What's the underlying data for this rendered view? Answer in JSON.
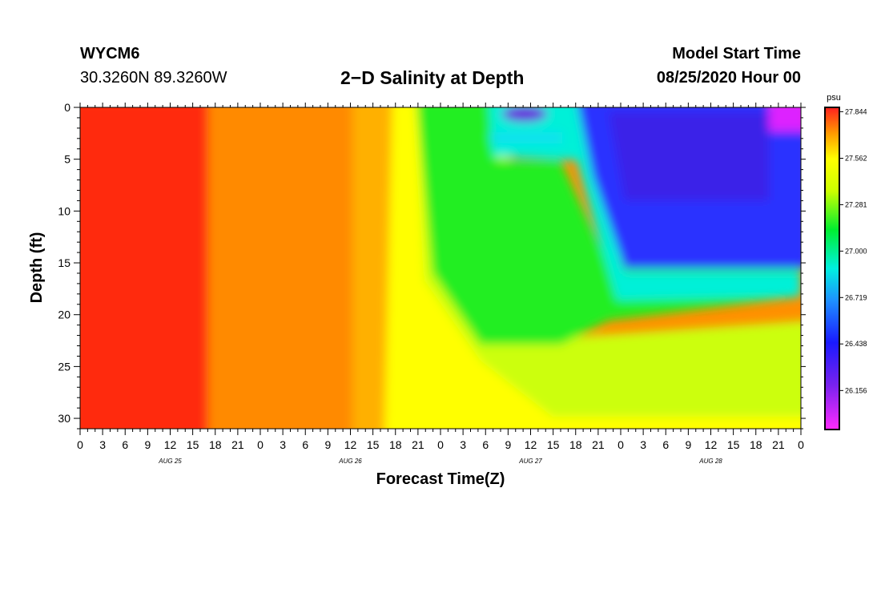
{
  "header": {
    "station": "WYCM6",
    "coords": "30.3260N 89.3260W",
    "title": "2−D Salinity at Depth",
    "model_start_label": "Model Start Time",
    "model_start_value": "08/25/2020 Hour 00"
  },
  "chart_data": {
    "type": "heatmap",
    "title": "2−D Salinity at Depth",
    "xlabel": "Forecast Time(Z)",
    "ylabel": "Depth (ft)",
    "x_hours_range": [
      0,
      96
    ],
    "ylim": [
      0,
      31
    ],
    "y_inverted": true,
    "x_tick_labels": [
      "0",
      "3",
      "6",
      "9",
      "12",
      "15",
      "18",
      "21",
      "0",
      "3",
      "6",
      "9",
      "12",
      "15",
      "18",
      "21",
      "0",
      "3",
      "6",
      "9",
      "12",
      "15",
      "18",
      "21",
      "0",
      "3",
      "6",
      "9",
      "12",
      "15",
      "18",
      "21",
      "0"
    ],
    "day_labels": [
      "AUG 25",
      "AUG 26",
      "AUG 27",
      "AUG 28"
    ],
    "y_ticks": [
      0,
      5,
      10,
      15,
      20,
      25,
      30
    ],
    "colorbar": {
      "unit": "psu",
      "tick_values": [
        "27.844",
        "27.562",
        "27.281",
        "27.000",
        "26.719",
        "26.438",
        "26.156"
      ],
      "min": 25.92,
      "max": 27.87
    },
    "grid": false,
    "legend": "right"
  }
}
